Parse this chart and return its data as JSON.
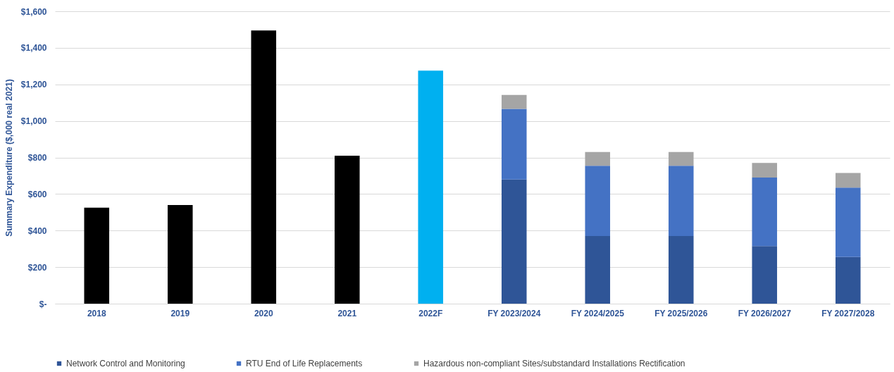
{
  "chart_data": {
    "type": "bar",
    "stacked": true,
    "ylabel": "Summary Expenditure ($,000 real 2021)",
    "categories": [
      "2018",
      "2019",
      "2020",
      "2021",
      "2022F",
      "FY 2023/2024",
      "FY 2024/2025",
      "FY 2025/2026",
      "FY 2026/2027",
      "FY 2027/2028"
    ],
    "series": [
      {
        "color": "#000000",
        "values": [
          525,
          540,
          1495,
          810,
          null,
          null,
          null,
          null,
          null,
          null
        ]
      },
      {
        "color": "#00b0f0",
        "values": [
          null,
          null,
          null,
          null,
          1275,
          null,
          null,
          null,
          null,
          null
        ]
      },
      {
        "name": "Network Control and Monitoring",
        "color": "#2f5597",
        "values": [
          null,
          null,
          null,
          null,
          null,
          680,
          370,
          370,
          315,
          255
        ]
      },
      {
        "name": "RTU End of Life Replacements",
        "color": "#4472c4",
        "values": [
          null,
          null,
          null,
          null,
          null,
          386,
          385,
          385,
          375,
          380
        ]
      },
      {
        "name": "Hazardous non-compliant Sites/substandard Installations Rectification",
        "color": "#a5a5a5",
        "values": [
          null,
          null,
          null,
          null,
          null,
          76,
          75,
          75,
          80,
          80
        ]
      }
    ],
    "ylim": [
      0,
      1600
    ],
    "yticks": [
      {
        "value": 0,
        "label": "$-"
      },
      {
        "value": 200,
        "label": "$200"
      },
      {
        "value": 400,
        "label": "$400"
      },
      {
        "value": 600,
        "label": "$600"
      },
      {
        "value": 800,
        "label": "$800"
      },
      {
        "value": 1000,
        "label": "$1,000"
      },
      {
        "value": 1200,
        "label": "$1,200"
      },
      {
        "value": 1400,
        "label": "$1,400"
      },
      {
        "value": 1600,
        "label": "$1,600"
      }
    ],
    "grid": "y",
    "legend": "bottom"
  }
}
